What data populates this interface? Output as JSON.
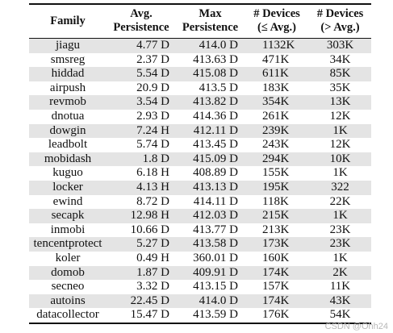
{
  "headers": {
    "family": "Family",
    "avg_line1": "Avg.",
    "avg_line2": "Persistence",
    "max_line1": "Max",
    "max_line2": "Persistence",
    "dev_le_line1": "# Devices",
    "dev_le_line2": "(≤ Avg.)",
    "dev_gt_line1": "# Devices",
    "dev_gt_line2": "(> Avg.)"
  },
  "rows": [
    [
      "jiagu",
      "4.77 D",
      "414.0 D",
      "1132K",
      "303K"
    ],
    [
      "smsreg",
      "2.37 D",
      "413.63 D",
      "471K",
      "34K"
    ],
    [
      "hiddad",
      "5.54 D",
      "415.08 D",
      "611K",
      "85K"
    ],
    [
      "airpush",
      "20.9 D",
      "413.5 D",
      "183K",
      "35K"
    ],
    [
      "revmob",
      "3.54 D",
      "413.82 D",
      "354K",
      "13K"
    ],
    [
      "dnotua",
      "2.93 D",
      "414.36 D",
      "261K",
      "12K"
    ],
    [
      "dowgin",
      "7.24 H",
      "412.11 D",
      "239K",
      "1K"
    ],
    [
      "leadbolt",
      "5.74 D",
      "413.45 D",
      "243K",
      "12K"
    ],
    [
      "mobidash",
      "1.8 D",
      "415.09 D",
      "294K",
      "10K"
    ],
    [
      "kuguo",
      "6.18 H",
      "408.89 D",
      "155K",
      "1K"
    ],
    [
      "locker",
      "4.13 H",
      "413.13 D",
      "195K",
      "322"
    ],
    [
      "ewind",
      "8.72 D",
      "414.11 D",
      "118K",
      "22K"
    ],
    [
      "secapk",
      "12.98 H",
      "412.03 D",
      "215K",
      "1K"
    ],
    [
      "inmobi",
      "10.66 D",
      "413.77 D",
      "213K",
      "23K"
    ],
    [
      "tencentprotect",
      "5.27 D",
      "413.58 D",
      "173K",
      "23K"
    ],
    [
      "koler",
      "0.49 H",
      "360.01 D",
      "160K",
      "1K"
    ],
    [
      "domob",
      "1.87 D",
      "409.91 D",
      "174K",
      "2K"
    ],
    [
      "secneo",
      "3.32 D",
      "413.15 D",
      "157K",
      "11K"
    ],
    [
      "autoins",
      "22.45 D",
      "414.0 D",
      "174K",
      "43K"
    ],
    [
      "datacollector",
      "15.47 D",
      "413.59 D",
      "176K",
      "54K"
    ]
  ],
  "watermark": "CSDN @Ohh24"
}
